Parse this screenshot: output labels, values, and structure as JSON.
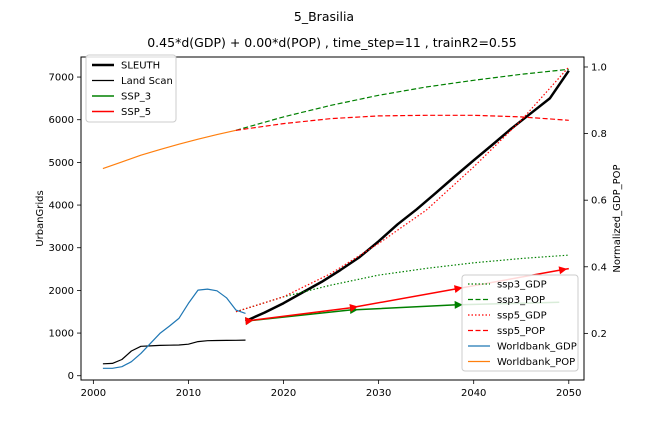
{
  "figure": {
    "suptitle": "5_Brasilia",
    "title": "0.45*d(GDP) + 0.00*d(POP) , time_step=11 , trainR2=0.55"
  },
  "chart_data": {
    "type": "line",
    "title": "5_Brasilia",
    "subtitle": "0.45*d(GDP) + 0.00*d(POP) , time_step=11 , trainR2=0.55",
    "grid": false,
    "x_axis": {
      "label": "",
      "range": [
        1998.7,
        2051.6
      ],
      "ticks": [
        2000,
        2010,
        2020,
        2030,
        2040,
        2050
      ]
    },
    "y_left": {
      "label": "UrbanGrids",
      "range": [
        -100,
        7470
      ],
      "ticks": [
        0,
        1000,
        2000,
        3000,
        4000,
        5000,
        6000,
        7000
      ]
    },
    "y_right": {
      "label": "Normalized_GDP_POP",
      "range": [
        0.06,
        1.03
      ],
      "ticks": [
        0.2,
        0.4,
        0.6,
        0.8,
        1.0
      ],
      "tick_labels": [
        "0.2",
        "0.4",
        "0.6",
        "0.8",
        "1.0"
      ]
    },
    "legend_left": {
      "placement": "upper-left",
      "items": [
        {
          "label": "SLEUTH",
          "color": "#000000",
          "width": 2.5,
          "dash": ""
        },
        {
          "label": "Land Scan",
          "color": "#000000",
          "width": 1.2,
          "dash": ""
        },
        {
          "label": "SSP_3",
          "color": "#008000",
          "width": 1.5,
          "dash": ""
        },
        {
          "label": "SSP_5",
          "color": "#ff0000",
          "width": 1.5,
          "dash": ""
        }
      ]
    },
    "legend_right": {
      "placement": "lower-right",
      "items": [
        {
          "label": "ssp3_GDP",
          "color": "#008000",
          "width": 1.2,
          "dash": "1.5,2"
        },
        {
          "label": "ssp3_POP",
          "color": "#008000",
          "width": 1.2,
          "dash": "5,2.5"
        },
        {
          "label": "ssp5_GDP",
          "color": "#ff0000",
          "width": 1.2,
          "dash": "1.5,2"
        },
        {
          "label": "ssp5_POP",
          "color": "#ff0000",
          "width": 1.2,
          "dash": "5,2.5"
        },
        {
          "label": "Worldbank_GDP",
          "color": "#1f77b4",
          "width": 1.2,
          "dash": ""
        },
        {
          "label": "Worldbank_POP",
          "color": "#ff7f0e",
          "width": 1.2,
          "dash": ""
        }
      ]
    },
    "series": [
      {
        "name": "SLEUTH",
        "axis": "left",
        "color": "#000000",
        "width": 2.5,
        "dash": "",
        "x": [
          2016,
          2018,
          2020,
          2022,
          2024,
          2026,
          2028,
          2030,
          2032,
          2034,
          2036,
          2038,
          2040,
          2042,
          2044,
          2046,
          2048,
          2050
        ],
        "y": [
          1280,
          1480,
          1700,
          1950,
          2200,
          2480,
          2780,
          3150,
          3550,
          3900,
          4280,
          4670,
          5050,
          5420,
          5800,
          6150,
          6500,
          7150
        ]
      },
      {
        "name": "Land Scan",
        "axis": "left",
        "color": "#000000",
        "width": 1.2,
        "dash": "",
        "x": [
          2001,
          2002,
          2003,
          2004,
          2005,
          2006,
          2007,
          2008,
          2009,
          2010,
          2011,
          2012,
          2013,
          2014,
          2015,
          2016
        ],
        "y": [
          280,
          290,
          380,
          580,
          690,
          700,
          710,
          715,
          720,
          740,
          800,
          820,
          825,
          828,
          830,
          835
        ]
      },
      {
        "name": "SSP_3",
        "axis": "left",
        "color": "#008000",
        "width": 1.5,
        "dash": "",
        "x": [
          2016,
          2027,
          2038,
          2049
        ],
        "y": [
          1280,
          1540,
          1660,
          1720
        ],
        "arrow_at": [
          0,
          1,
          2,
          3
        ]
      },
      {
        "name": "SSP_5",
        "axis": "left",
        "color": "#ff0000",
        "width": 1.5,
        "dash": "",
        "x": [
          2016,
          2027,
          2038,
          2049,
          2050
        ],
        "y": [
          1280,
          1590,
          2030,
          2470,
          2510
        ],
        "arrow_at": [
          0,
          1,
          2,
          3
        ]
      },
      {
        "name": "ssp3_GDP",
        "axis": "right",
        "color": "#008000",
        "width": 1.2,
        "dash": "1.5,2",
        "x": [
          2015,
          2020,
          2025,
          2030,
          2035,
          2040,
          2045,
          2050
        ],
        "y": [
          0.265,
          0.31,
          0.345,
          0.375,
          0.395,
          0.412,
          0.425,
          0.435
        ]
      },
      {
        "name": "ssp3_POP",
        "axis": "right",
        "color": "#008000",
        "width": 1.2,
        "dash": "5,2.5",
        "x": [
          2015,
          2020,
          2025,
          2030,
          2035,
          2040,
          2045,
          2050
        ],
        "y": [
          0.81,
          0.85,
          0.885,
          0.915,
          0.94,
          0.96,
          0.978,
          0.993
        ]
      },
      {
        "name": "ssp5_GDP",
        "axis": "right",
        "color": "#ff0000",
        "width": 1.2,
        "dash": "1.5,2",
        "x": [
          2015,
          2020,
          2025,
          2030,
          2035,
          2040,
          2045,
          2050
        ],
        "y": [
          0.265,
          0.31,
          0.38,
          0.47,
          0.57,
          0.7,
          0.84,
          1.0
        ]
      },
      {
        "name": "ssp5_POP",
        "axis": "right",
        "color": "#ff0000",
        "width": 1.2,
        "dash": "5,2.5",
        "x": [
          2015,
          2020,
          2025,
          2030,
          2035,
          2040,
          2045,
          2050
        ],
        "y": [
          0.81,
          0.83,
          0.845,
          0.853,
          0.855,
          0.855,
          0.85,
          0.84
        ]
      },
      {
        "name": "Worldbank_GDP",
        "axis": "right",
        "color": "#1f77b4",
        "width": 1.2,
        "dash": "",
        "x": [
          2001,
          2002,
          2003,
          2004,
          2005,
          2006,
          2007,
          2008,
          2009,
          2010,
          2011,
          2012,
          2013,
          2014,
          2015,
          2016
        ],
        "y": [
          0.095,
          0.095,
          0.1,
          0.115,
          0.14,
          0.17,
          0.2,
          0.222,
          0.245,
          0.29,
          0.33,
          0.333,
          0.328,
          0.307,
          0.27,
          0.26
        ]
      },
      {
        "name": "Worldbank_POP",
        "axis": "right",
        "color": "#ff7f0e",
        "width": 1.2,
        "dash": "",
        "x": [
          2001,
          2003,
          2005,
          2007,
          2009,
          2011,
          2013,
          2015
        ],
        "y": [
          0.695,
          0.715,
          0.735,
          0.752,
          0.768,
          0.783,
          0.797,
          0.81
        ]
      }
    ]
  }
}
